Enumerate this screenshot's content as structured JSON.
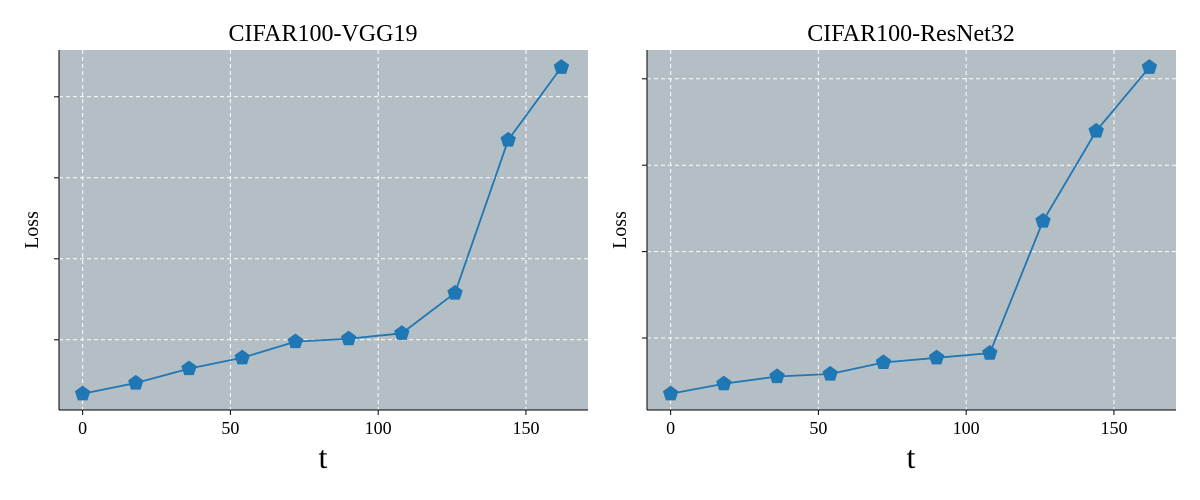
{
  "chart_data": [
    {
      "type": "line",
      "title": "CIFAR100-VGG19",
      "xlabel": "t",
      "ylabel": "Loss",
      "xlim": [
        -8,
        171
      ],
      "ylim": [
        0,
        1
      ],
      "xticks": [
        0,
        50,
        100,
        150
      ],
      "yticks": [
        0.195,
        0.42,
        0.645,
        0.87
      ],
      "grid": true,
      "background": "#b4bec5",
      "line_color": "#1f77b4",
      "marker": "pentagon",
      "series": [
        {
          "x": [
            0,
            18,
            36,
            54,
            72,
            90,
            108,
            126,
            144,
            162
          ],
          "y": [
            0.045,
            0.075,
            0.115,
            0.145,
            0.19,
            0.198,
            0.213,
            0.325,
            0.75,
            0.952
          ]
        }
      ]
    },
    {
      "type": "line",
      "title": "CIFAR100-ResNet32",
      "xlabel": "t",
      "ylabel": "Loss",
      "xlim": [
        -8,
        171
      ],
      "ylim": [
        0,
        1
      ],
      "xticks": [
        0,
        50,
        100,
        150
      ],
      "yticks": [
        0.2,
        0.44,
        0.68,
        0.92
      ],
      "grid": true,
      "background": "#b4bec5",
      "line_color": "#1f77b4",
      "marker": "pentagon",
      "series": [
        {
          "x": [
            0,
            18,
            36,
            54,
            72,
            90,
            108,
            126,
            144,
            162
          ],
          "y": [
            0.045,
            0.073,
            0.093,
            0.1,
            0.132,
            0.145,
            0.158,
            0.525,
            0.775,
            0.952
          ]
        }
      ]
    }
  ]
}
